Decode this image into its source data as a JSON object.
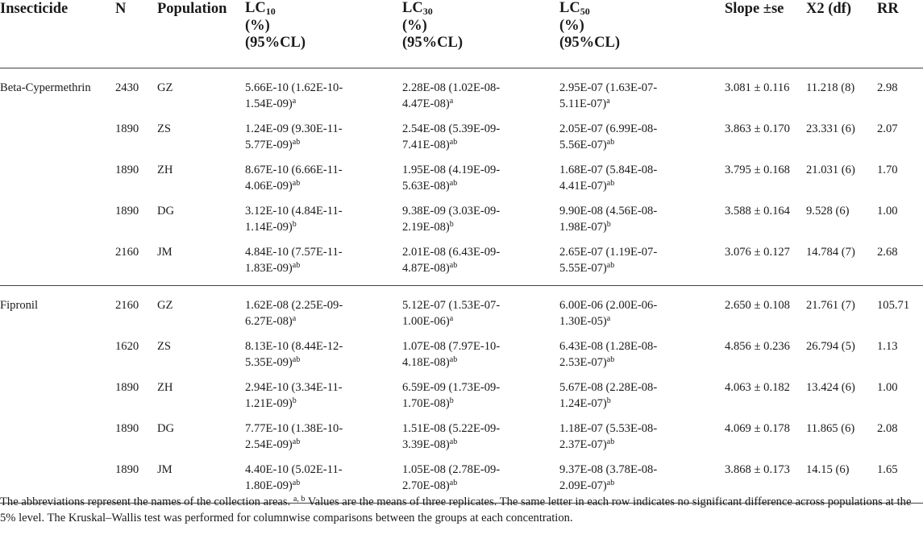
{
  "headers": {
    "insecticide": "Insecticide",
    "n": "N",
    "population": "Population",
    "lc10": {
      "name": "LC",
      "sub": "10",
      "unit": "(%)",
      "cl": "(95%CL)"
    },
    "lc30": {
      "name": "LC",
      "sub": "30",
      "unit": "(%)",
      "cl": "(95%CL)"
    },
    "lc50": {
      "name": "LC",
      "sub": "50",
      "unit": "(%)",
      "cl": "(95%CL)"
    },
    "slope": "Slope ±se",
    "x2": "X2 (df)",
    "rr": "RR"
  },
  "groups": [
    {
      "insecticide": "Beta-Cypermethrin",
      "rows": [
        {
          "n": "2430",
          "pop": "GZ",
          "lc10": {
            "l1": "5.66E-10 (1.62E-10-",
            "l2": "1.54E-09)",
            "sup": "a"
          },
          "lc30": {
            "l1": "2.28E-08 (1.02E-08-",
            "l2": "4.47E-08)",
            "sup": "a"
          },
          "lc50": {
            "l1": "2.95E-07 (1.63E-07-",
            "l2": "5.11E-07)",
            "sup": "a"
          },
          "slope": "3.081 ± 0.116",
          "x2": "11.218 (8)",
          "rr": "2.98"
        },
        {
          "n": "1890",
          "pop": "ZS",
          "lc10": {
            "l1": "1.24E-09 (9.30E-11-",
            "l2": "5.77E-09)",
            "sup": "ab"
          },
          "lc30": {
            "l1": "2.54E-08 (5.39E-09-",
            "l2": "7.41E-08)",
            "sup": "ab"
          },
          "lc50": {
            "l1": "2.05E-07 (6.99E-08-",
            "l2": "5.56E-07)",
            "sup": "ab"
          },
          "slope": "3.863 ± 0.170",
          "x2": "23.331 (6)",
          "rr": "2.07"
        },
        {
          "n": "1890",
          "pop": "ZH",
          "lc10": {
            "l1": "8.67E-10 (6.66E-11-",
            "l2": "4.06E-09)",
            "sup": "ab"
          },
          "lc30": {
            "l1": "1.95E-08 (4.19E-09-",
            "l2": "5.63E-08)",
            "sup": "ab"
          },
          "lc50": {
            "l1": "1.68E-07 (5.84E-08-",
            "l2": "4.41E-07)",
            "sup": "ab"
          },
          "slope": "3.795 ± 0.168",
          "x2": "21.031 (6)",
          "rr": "1.70"
        },
        {
          "n": "1890",
          "pop": "DG",
          "lc10": {
            "l1": "3.12E-10 (4.84E-11-",
            "l2": "1.14E-09)",
            "sup": "b"
          },
          "lc30": {
            "l1": "9.38E-09 (3.03E-09-",
            "l2": "2.19E-08)",
            "sup": "b"
          },
          "lc50": {
            "l1": "9.90E-08 (4.56E-08-",
            "l2": "1.98E-07)",
            "sup": "b"
          },
          "slope": "3.588 ± 0.164",
          "x2": "9.528 (6)",
          "rr": "1.00"
        },
        {
          "n": "2160",
          "pop": "JM",
          "lc10": {
            "l1": "4.84E-10 (7.57E-11-",
            "l2": "1.83E-09)",
            "sup": "ab"
          },
          "lc30": {
            "l1": "2.01E-08 (6.43E-09-",
            "l2": "4.87E-08)",
            "sup": "ab"
          },
          "lc50": {
            "l1": "2.65E-07 (1.19E-07-",
            "l2": "5.55E-07)",
            "sup": "ab"
          },
          "slope": "3.076 ± 0.127",
          "x2": "14.784 (7)",
          "rr": "2.68"
        }
      ]
    },
    {
      "insecticide": "Fipronil",
      "rows": [
        {
          "n": "2160",
          "pop": "GZ",
          "lc10": {
            "l1": "1.62E-08 (2.25E-09-",
            "l2": "6.27E-08)",
            "sup": "a"
          },
          "lc30": {
            "l1": "5.12E-07 (1.53E-07-",
            "l2": "1.00E-06)",
            "sup": "a"
          },
          "lc50": {
            "l1": "6.00E-06 (2.00E-06-",
            "l2": "1.30E-05)",
            "sup": "a"
          },
          "slope": "2.650 ± 0.108",
          "x2": "21.761 (7)",
          "rr": "105.71"
        },
        {
          "n": "1620",
          "pop": "ZS",
          "lc10": {
            "l1": "8.13E-10 (8.44E-12-",
            "l2": "5.35E-09)",
            "sup": "ab"
          },
          "lc30": {
            "l1": "1.07E-08 (7.97E-10-",
            "l2": "4.18E-08)",
            "sup": "ab"
          },
          "lc50": {
            "l1": "6.43E-08 (1.28E-08-",
            "l2": "2.53E-07)",
            "sup": "ab"
          },
          "slope": "4.856 ± 0.236",
          "x2": "26.794 (5)",
          "rr": "1.13"
        },
        {
          "n": "1890",
          "pop": "ZH",
          "lc10": {
            "l1": "2.94E-10 (3.34E-11-",
            "l2": "1.21E-09)",
            "sup": "b"
          },
          "lc30": {
            "l1": "6.59E-09 (1.73E-09-",
            "l2": "1.70E-08)",
            "sup": "b"
          },
          "lc50": {
            "l1": "5.67E-08 (2.28E-08-",
            "l2": "1.24E-07)",
            "sup": "b"
          },
          "slope": "4.063 ± 0.182",
          "x2": "13.424 (6)",
          "rr": "1.00"
        },
        {
          "n": "1890",
          "pop": "DG",
          "lc10": {
            "l1": "7.77E-10 (1.38E-10-",
            "l2": "2.54E-09)",
            "sup": "ab"
          },
          "lc30": {
            "l1": "1.51E-08 (5.22E-09-",
            "l2": "3.39E-08)",
            "sup": "ab"
          },
          "lc50": {
            "l1": "1.18E-07 (5.53E-08-",
            "l2": "2.37E-07)",
            "sup": "ab"
          },
          "slope": "4.069 ± 0.178",
          "x2": "11.865 (6)",
          "rr": "2.08"
        },
        {
          "n": "1890",
          "pop": "JM",
          "lc10": {
            "l1": "4.40E-10 (5.02E-11-",
            "l2": "1.80E-09)",
            "sup": "ab"
          },
          "lc30": {
            "l1": "1.05E-08 (2.78E-09-",
            "l2": "2.70E-08)",
            "sup": "ab"
          },
          "lc50": {
            "l1": "9.37E-08 (3.78E-08-",
            "l2": "2.09E-07)",
            "sup": "ab"
          },
          "slope": "3.868 ± 0.173",
          "x2": "14.15 (6)",
          "rr": "1.65"
        }
      ]
    }
  ],
  "footnote": {
    "part1": "The abbreviations represent the names of the collection areas.",
    "sup": "a, b",
    "part2": "Values are the means of three replicates. The same letter in each row indicates no significant difference across populations at the 5% level. The Kruskal–Wallis test was performed for columnwise comparisons between the groups at each concentration."
  }
}
